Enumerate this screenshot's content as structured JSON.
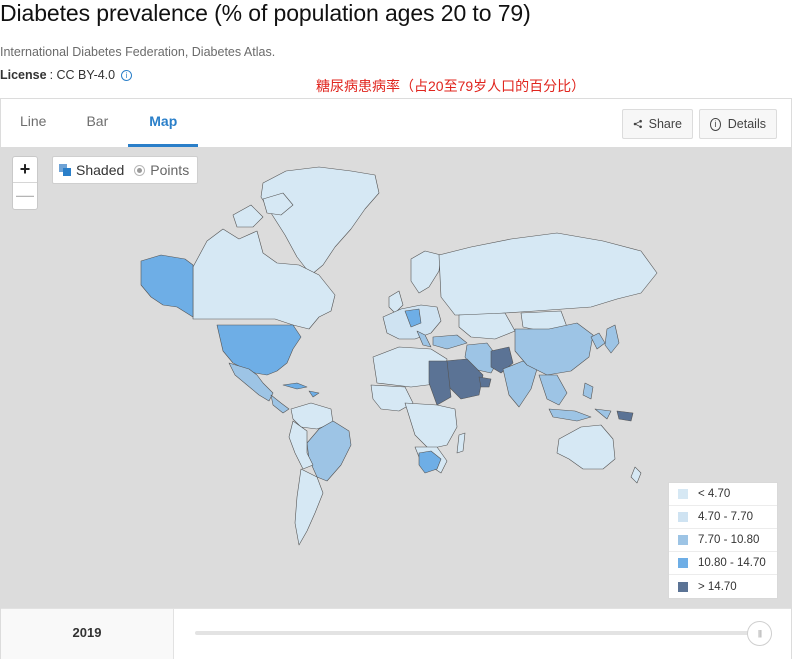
{
  "page": {
    "title": "Diabetes prevalence (% of population ages 20 to 79)",
    "source": "International Diabetes Federation, Diabetes Atlas.",
    "license_label": "License",
    "license_value": ": CC BY-4.0",
    "annotation": "糖尿病患病率（占20至79岁人口的百分比）"
  },
  "tabs": [
    {
      "label": "Line",
      "active": false
    },
    {
      "label": "Bar",
      "active": false
    },
    {
      "label": "Map",
      "active": true
    }
  ],
  "toolbar": {
    "share_label": "Share",
    "share_icon": "share-icon",
    "details_label": "Details",
    "details_icon": "info-icon"
  },
  "map": {
    "zoom_in_label": "+",
    "zoom_out_label": "—",
    "mode_shaded_label": "Shaded",
    "mode_points_label": "Points",
    "active_mode": "Shaded",
    "ocean_color": "#dcdcdc",
    "border_color": "#555555"
  },
  "legend": [
    {
      "label": "< 4.70",
      "color": "#d6e8f4"
    },
    {
      "label": "4.70 - 7.70",
      "color": "#cfe3f2"
    },
    {
      "label": "7.70 - 10.80",
      "color": "#9dc4e5"
    },
    {
      "label": "10.80 - 14.70",
      "color": "#6eaee6"
    },
    {
      "label": "> 14.70",
      "color": "#5b7395"
    }
  ],
  "timeline": {
    "year": "2019",
    "handle_glyph": "|||"
  }
}
